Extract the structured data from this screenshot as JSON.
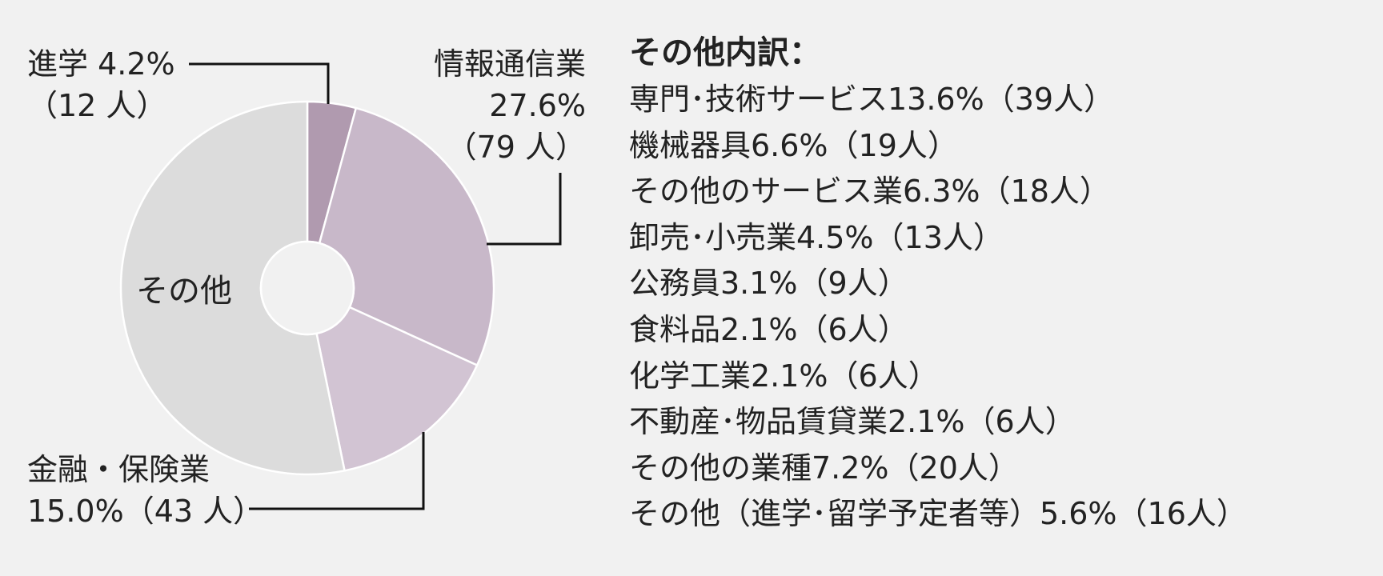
{
  "chart_data": {
    "type": "pie",
    "style": "donut",
    "slices": [
      {
        "name": "進学",
        "percent": 4.2,
        "count": 12,
        "color": "#b09aaf"
      },
      {
        "name": "情報通信業",
        "percent": 27.6,
        "count": 79,
        "color": "#c8b8c9"
      },
      {
        "name": "金融・保険業",
        "percent": 15.0,
        "count": 43,
        "color": "#d2c4d3"
      },
      {
        "name": "その他",
        "percent": 53.2,
        "color": "#dcdcdc"
      }
    ],
    "labels": {
      "shingaku": {
        "line1": "進学 4.2%",
        "line2": "（12 人）"
      },
      "info": {
        "line1": "情報通信業",
        "line2": "27.6%",
        "line3": "（79 人）"
      },
      "finance": {
        "line1": "金融・保険業",
        "line2": "15.0%（43 人）"
      },
      "other": "その他"
    },
    "breakdown": {
      "title": "その他内訳：",
      "items": [
        "専門･技術サービス13.6%（39人）",
        "機械器具6.6%（19人）",
        "その他のサービス業6.3%（18人）",
        "卸売･小売業4.5%（13人）",
        "公務員3.1%（9人）",
        "食料品2.1%（6人）",
        "化学工業2.1%（6人）",
        "不動産･物品賃貸業2.1%（6人）",
        "その他の業種7.2%（20人）",
        "その他（進学･留学予定者等）5.6%（16人）"
      ]
    }
  }
}
